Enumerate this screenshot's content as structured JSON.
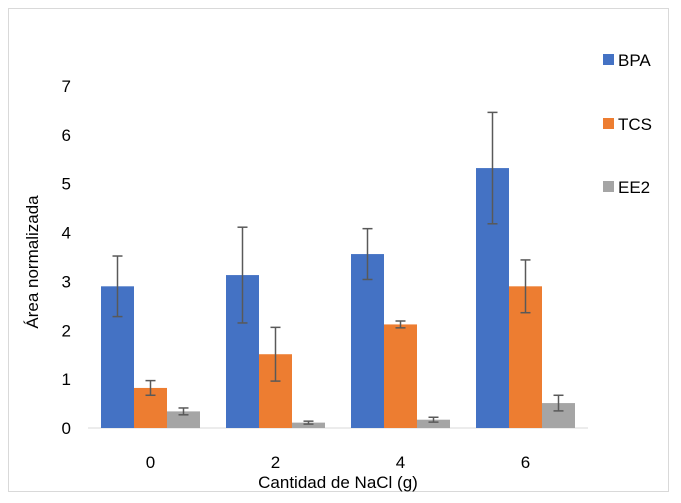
{
  "chart_data": {
    "type": "bar",
    "xlabel": "Cantidad de NaCl (g)",
    "ylabel": "Área normalizada",
    "ylim": [
      0,
      7
    ],
    "yticks": [
      0,
      1,
      2,
      3,
      4,
      5,
      6,
      7
    ],
    "categories": [
      "0",
      "2",
      "4",
      "6"
    ],
    "grid": false,
    "legend_position": "right",
    "series": [
      {
        "name": "BPA",
        "color": "#4472C4",
        "values": [
          2.9,
          3.13,
          3.56,
          5.32
        ],
        "errors": [
          0.62,
          0.98,
          0.52,
          1.14
        ]
      },
      {
        "name": "TCS",
        "color": "#ED7D31",
        "values": [
          0.82,
          1.51,
          2.12,
          2.9
        ],
        "errors": [
          0.15,
          0.55,
          0.07,
          0.54
        ]
      },
      {
        "name": "EE2",
        "color": "#A5A5A5",
        "values": [
          0.34,
          0.11,
          0.17,
          0.51
        ],
        "errors": [
          0.07,
          0.03,
          0.05,
          0.16
        ]
      }
    ]
  }
}
